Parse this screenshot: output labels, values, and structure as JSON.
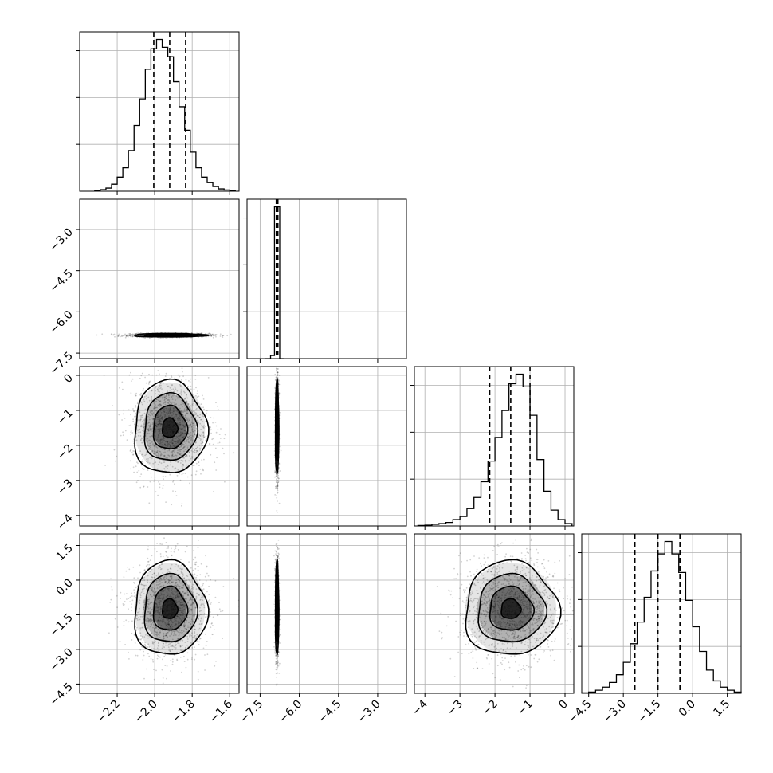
{
  "chart_data": {
    "type": "corner",
    "title": "",
    "grid": true,
    "dimensions": 4,
    "x_axes": [
      {
        "range": [
          -2.4,
          -1.55
        ],
        "ticks": [
          -2.2,
          -2.0,
          -1.8,
          -1.6
        ],
        "tick_labels": [
          "−2.2",
          "−2.0",
          "−1.8",
          "−1.6"
        ]
      },
      {
        "range": [
          -8.0,
          -1.9
        ],
        "ticks": [
          -7.5,
          -6.0,
          -4.5,
          -3.0
        ],
        "tick_labels": [
          "−7.5",
          "−6.0",
          "−4.5",
          "−3.0"
        ]
      },
      {
        "range": [
          -4.3,
          0.25
        ],
        "ticks": [
          -4,
          -3,
          -2,
          -1,
          0
        ],
        "tick_labels": [
          "−4",
          "−3",
          "−2",
          "−1",
          "0"
        ]
      },
      {
        "range": [
          -4.8,
          2.1
        ],
        "ticks": [
          -4.5,
          -3.0,
          -1.5,
          0.0,
          1.5
        ],
        "tick_labels": [
          "−4.5",
          "−3.0",
          "−1.5",
          "0.0",
          "1.5"
        ]
      }
    ],
    "y_axes": {
      "1": {
        "range": [
          -7.7,
          -1.9
        ],
        "ticks": [
          -3.0,
          -4.5,
          -6.0,
          -7.5
        ],
        "tick_labels": [
          "−3.0",
          "−4.5",
          "−6.0",
          "−7.5"
        ]
      },
      "2": {
        "range": [
          -4.3,
          0.25
        ],
        "ticks": [
          0,
          -1,
          -2,
          -3,
          -4
        ],
        "tick_labels": [
          "0",
          "−1",
          "−2",
          "−3",
          "−4"
        ]
      },
      "3": {
        "range": [
          -4.9,
          2.0
        ],
        "ticks": [
          1.5,
          0.0,
          -1.5,
          -3.0,
          -4.5
        ],
        "tick_labels": [
          "1.5",
          "0.0",
          "−1.5",
          "−3.0",
          "−4.5"
        ]
      }
    },
    "histograms": [
      {
        "dim": 0,
        "bin_edges": [
          -2.32,
          -2.29,
          -2.26,
          -2.23,
          -2.2,
          -2.17,
          -2.14,
          -2.11,
          -2.08,
          -2.05,
          -2.02,
          -1.99,
          -1.96,
          -1.93,
          -1.9,
          -1.87,
          -1.84,
          -1.81,
          -1.78,
          -1.75,
          -1.72,
          -1.69,
          -1.66,
          -1.63,
          -1.6,
          -1.57
        ],
        "counts": [
          3,
          10,
          20,
          45,
          90,
          150,
          260,
          420,
          590,
          780,
          910,
          970,
          920,
          860,
          700,
          540,
          390,
          250,
          150,
          90,
          55,
          30,
          15,
          8,
          3
        ],
        "quantiles": [
          -2.005,
          -1.92,
          -1.835
        ]
      },
      {
        "dim": 1,
        "bin_edges": [
          -7.3,
          -7.1,
          -6.95,
          -6.75,
          -6.6
        ],
        "counts": [
          0,
          20,
          990,
          0
        ],
        "quantiles": [
          -6.88,
          -6.85,
          -6.82
        ]
      },
      {
        "dim": 2,
        "bin_edges": [
          -4.2,
          -4.0,
          -3.8,
          -3.6,
          -3.4,
          -3.2,
          -3.0,
          -2.8,
          -2.6,
          -2.4,
          -2.2,
          -2.0,
          -1.8,
          -1.6,
          -1.4,
          -1.2,
          -1.0,
          -0.8,
          -0.6,
          -0.4,
          -0.2,
          0.0,
          0.2
        ],
        "counts": [
          3,
          5,
          10,
          15,
          22,
          40,
          60,
          110,
          180,
          280,
          410,
          560,
          730,
          900,
          960,
          880,
          700,
          420,
          220,
          100,
          40,
          15
        ],
        "quantiles": [
          -2.15,
          -1.55,
          -1.0
        ]
      },
      {
        "dim": 3,
        "bin_edges": [
          -4.8,
          -4.5,
          -4.2,
          -3.9,
          -3.6,
          -3.3,
          -3.0,
          -2.7,
          -2.4,
          -2.1,
          -1.8,
          -1.5,
          -1.2,
          -0.9,
          -0.6,
          -0.3,
          0.0,
          0.3,
          0.6,
          0.9,
          1.2,
          1.5,
          1.8,
          2.1
        ],
        "counts": [
          3,
          8,
          20,
          40,
          70,
          120,
          200,
          320,
          460,
          620,
          790,
          900,
          980,
          900,
          780,
          600,
          430,
          270,
          150,
          80,
          40,
          20,
          8
        ],
        "quantiles": [
          -2.5,
          -1.5,
          -0.55
        ]
      }
    ],
    "pair_centers": {
      "1,0": {
        "mean": [
          -1.92,
          -6.85
        ],
        "sd": [
          0.09,
          0.03
        ]
      },
      "2,0": {
        "mean": [
          -1.92,
          -1.5
        ],
        "sd": [
          0.09,
          0.62
        ]
      },
      "2,1": {
        "mean": [
          -6.85,
          -1.5
        ],
        "sd": [
          0.03,
          0.62
        ]
      },
      "3,0": {
        "mean": [
          -1.92,
          -1.25
        ],
        "sd": [
          0.09,
          0.95
        ]
      },
      "3,1": {
        "mean": [
          -6.85,
          -1.25
        ],
        "sd": [
          0.03,
          0.95
        ]
      },
      "3,2": {
        "mean": [
          -1.55,
          -1.25
        ],
        "sd": [
          0.62,
          0.95
        ]
      }
    },
    "colors": {
      "line": "#000000",
      "grid": "#b0b0b0",
      "scatter": "#000000"
    }
  }
}
